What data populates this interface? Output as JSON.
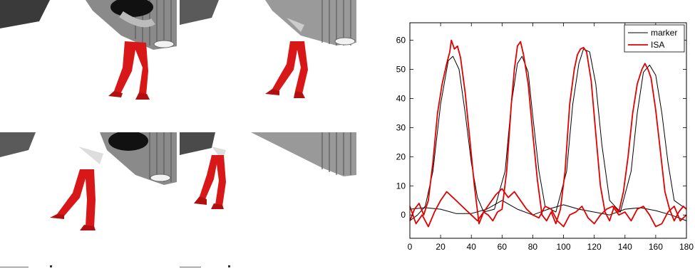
{
  "figure": {
    "left_panel": "walking-frames",
    "frame_count": 6
  },
  "colors": {
    "marker": "#000000",
    "isa": "#e00000",
    "leg_overlay": "#d81818"
  },
  "chart_data": {
    "type": "line",
    "title": "",
    "xlabel": "",
    "ylabel": "",
    "xlim": [
      0,
      180
    ],
    "ylim": [
      -8,
      66
    ],
    "xticks": [
      0,
      20,
      40,
      60,
      80,
      100,
      120,
      140,
      160,
      180
    ],
    "yticks": [
      0,
      10,
      20,
      30,
      40,
      50,
      60
    ],
    "legend": {
      "position": "top-right",
      "entries": [
        "marker",
        "ISA"
      ]
    },
    "series": [
      {
        "name": "marker",
        "color": "#000000",
        "lines": [
          {
            "x": [
              0,
              5,
              10,
              15,
              20,
              25,
              28,
              32,
              36,
              40,
              44,
              48,
              55,
              62,
              66,
              70,
              73,
              77,
              80,
              84,
              88,
              95,
              102,
              106,
              110,
              113,
              117,
              121,
              125,
              130,
              137,
              144,
              148,
              152,
              156,
              160,
              164,
              168,
              172,
              180
            ],
            "y": [
              -2,
              0,
              3,
              15,
              38,
              53,
              54.5,
              50,
              35,
              18,
              6,
              1,
              2,
              15,
              38,
              52,
              54.5,
              49,
              34,
              15,
              3,
              1,
              15,
              38,
              52,
              57,
              56,
              45,
              24,
              5,
              1,
              15,
              35,
              49,
              51.5,
              48,
              35,
              18,
              5,
              2
            ]
          },
          {
            "x": [
              0,
              10,
              20,
              30,
              40,
              50,
              60,
              70,
              80,
              90,
              100,
              110,
              120,
              130,
              140,
              150,
              160,
              170,
              180
            ],
            "y": [
              2,
              2.5,
              2,
              0.5,
              0.5,
              2,
              5,
              2,
              0,
              2,
              3.5,
              2,
              1,
              0,
              2,
              2.5,
              1.5,
              0,
              -2
            ]
          }
        ]
      },
      {
        "name": "ISA",
        "color": "#e00000",
        "lines": [
          {
            "x": [
              0,
              3,
              6,
              9,
              12,
              15,
              18,
              21,
              24,
              26,
              27,
              29,
              31,
              33,
              36,
              39,
              42,
              45,
              48,
              51,
              54,
              57,
              60,
              63,
              66,
              68,
              70,
              72,
              74,
              77,
              80,
              83,
              86,
              89,
              92,
              95,
              98,
              101,
              104,
              107,
              109,
              111,
              113,
              115,
              118,
              121,
              124,
              127,
              130,
              133,
              136,
              139,
              142,
              145,
              148,
              151,
              153,
              155,
              157,
              160,
              163,
              166,
              169,
              172,
              175,
              178,
              180
            ],
            "y": [
              -2,
              2,
              4,
              0,
              5,
              18,
              35,
              45,
              52,
              56,
              60,
              57,
              58,
              54,
              42,
              26,
              10,
              -3,
              1,
              0,
              -2,
              1,
              2,
              15,
              38,
              50,
              58,
              59.5,
              55,
              45,
              28,
              12,
              0,
              -2,
              1,
              -3,
              2,
              15,
              38,
              50,
              55,
              57,
              57.5,
              56,
              46,
              28,
              10,
              1,
              -2,
              3,
              1,
              8,
              20,
              35,
              45,
              50,
              52,
              50,
              47,
              36,
              22,
              8,
              2,
              -2,
              1,
              3,
              2
            ]
          },
          {
            "x": [
              0,
              4,
              8,
              12,
              16,
              20,
              24,
              28,
              32,
              36,
              40,
              44,
              48,
              52,
              56,
              60,
              64,
              68,
              72,
              76,
              80,
              84,
              88,
              92,
              96,
              100,
              104,
              108,
              112,
              116,
              120,
              124,
              128,
              132,
              136,
              140,
              144,
              148,
              152,
              156,
              160,
              164,
              168,
              172,
              176,
              180
            ],
            "y": [
              3,
              -3,
              0,
              -4,
              1,
              5,
              8,
              6,
              4,
              2,
              0,
              -2,
              1,
              4,
              7,
              9,
              6,
              8,
              5,
              2,
              0,
              -1,
              3,
              2,
              -2,
              -4,
              0,
              1,
              3,
              -1,
              -3,
              0,
              2,
              3,
              0,
              1,
              -2,
              2,
              3,
              0,
              -4,
              -3,
              1,
              3,
              -2,
              0
            ]
          }
        ]
      }
    ]
  }
}
